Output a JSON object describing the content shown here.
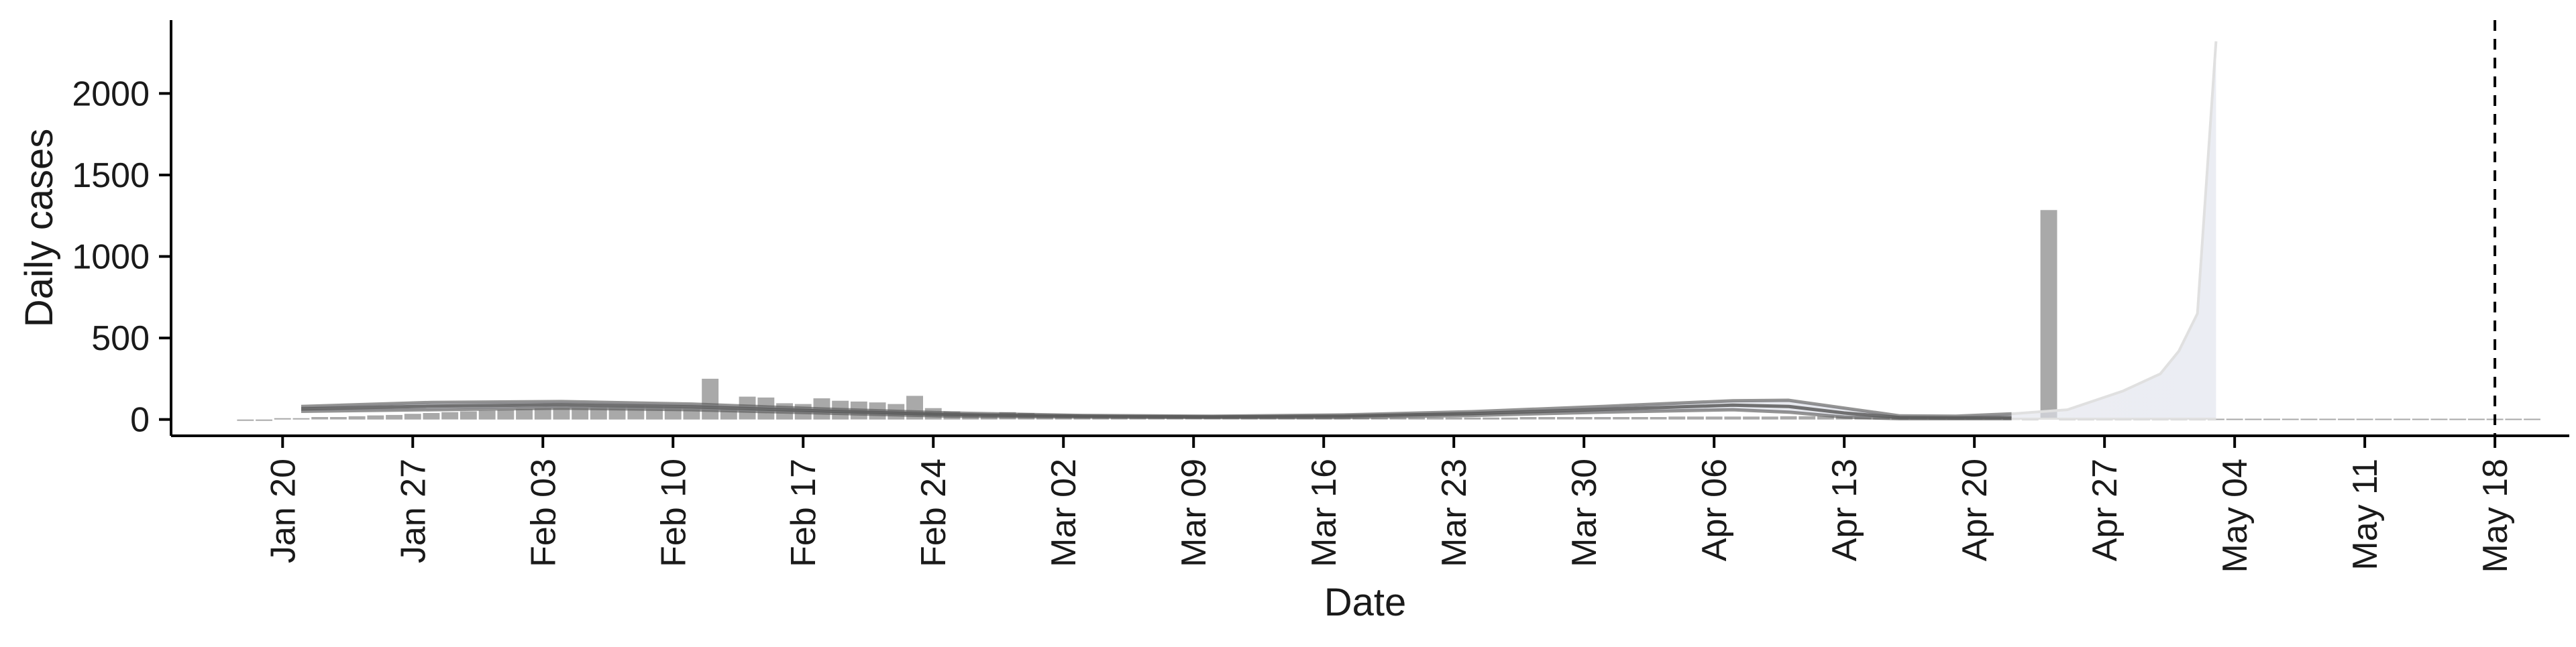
{
  "chart_data": {
    "type": "bar",
    "title": "",
    "xlabel": "Date",
    "ylabel": "Daily cases",
    "x_start": "2020-01-18",
    "xlim": [
      "2020-01-14",
      "2020-05-22"
    ],
    "ylim": [
      -100,
      2450
    ],
    "grid": false,
    "legend": "none",
    "colors": {
      "bar": "#a9a9a9",
      "line": "#5a5a5a",
      "band": "#dfe1ea",
      "forecast_band": "#e9ebf2",
      "forecast_line": "#e0e0e0",
      "vline": "#000000"
    },
    "x_ticks": [
      {
        "date": "2020-01-20",
        "label": "Jan 20"
      },
      {
        "date": "2020-01-27",
        "label": "Jan 27"
      },
      {
        "date": "2020-02-03",
        "label": "Feb 03"
      },
      {
        "date": "2020-02-10",
        "label": "Feb 10"
      },
      {
        "date": "2020-02-17",
        "label": "Feb 17"
      },
      {
        "date": "2020-02-24",
        "label": "Feb 24"
      },
      {
        "date": "2020-03-02",
        "label": "Mar 02"
      },
      {
        "date": "2020-03-09",
        "label": "Mar 09"
      },
      {
        "date": "2020-03-16",
        "label": "Mar 16"
      },
      {
        "date": "2020-03-23",
        "label": "Mar 23"
      },
      {
        "date": "2020-03-30",
        "label": "Mar 30"
      },
      {
        "date": "2020-04-06",
        "label": "Apr 06"
      },
      {
        "date": "2020-04-13",
        "label": "Apr 13"
      },
      {
        "date": "2020-04-20",
        "label": "Apr 20"
      },
      {
        "date": "2020-04-27",
        "label": "Apr 27"
      },
      {
        "date": "2020-05-04",
        "label": "May 04"
      },
      {
        "date": "2020-05-11",
        "label": "May 11"
      },
      {
        "date": "2020-05-18",
        "label": "May 18"
      }
    ],
    "y_ticks": [
      0,
      500,
      1000,
      1500,
      2000
    ],
    "vline_date": "2020-05-18",
    "bars": [
      0,
      0,
      8,
      8,
      15,
      15,
      20,
      25,
      28,
      35,
      40,
      45,
      50,
      55,
      60,
      65,
      70,
      72,
      75,
      78,
      80,
      82,
      80,
      78,
      75,
      250,
      70,
      140,
      135,
      100,
      95,
      130,
      115,
      110,
      105,
      95,
      145,
      70,
      50,
      35,
      35,
      45,
      40,
      30,
      30,
      25,
      20,
      20,
      20,
      18,
      18,
      15,
      15,
      15,
      12,
      12,
      12,
      12,
      10,
      10,
      10,
      10,
      12,
      12,
      12,
      12,
      12,
      12,
      12,
      15,
      15,
      15,
      15,
      15,
      15,
      15,
      15,
      18,
      18,
      18,
      18,
      18,
      18,
      20,
      20,
      20,
      20,
      20,
      20,
      18,
      15,
      12,
      10,
      10,
      8,
      6,
      5,
      1285,
      5,
      5,
      5,
      5,
      5,
      5,
      5,
      5,
      5,
      5,
      5,
      5,
      5,
      5,
      5,
      5,
      5,
      5,
      5,
      5,
      5,
      5,
      5,
      5,
      5,
      5
    ],
    "series": [
      {
        "x": [
          "2020-01-21",
          "2020-01-28",
          "2020-02-04",
          "2020-02-11",
          "2020-02-18",
          "2020-02-25",
          "2020-03-03",
          "2020-03-10",
          "2020-03-17",
          "2020-03-24",
          "2020-03-31",
          "2020-04-07",
          "2020-04-10",
          "2020-04-13",
          "2020-04-16",
          "2020-04-19",
          "2020-04-22",
          "2020-04-25",
          "2020-04-28",
          "2020-04-30",
          "2020-05-01",
          "2020-05-02",
          "2020-05-03"
        ],
        "upper": [
          80,
          105,
          110,
          95,
          65,
          40,
          25,
          20,
          28,
          48,
          80,
          115,
          118,
          70,
          22,
          20,
          35,
          60,
          175,
          280,
          420,
          650,
          2320
        ],
        "lower": [
          50,
          60,
          70,
          60,
          40,
          20,
          15,
          12,
          12,
          25,
          45,
          60,
          45,
          15,
          5,
          5,
          5,
          5,
          5,
          5,
          5,
          5,
          5
        ],
        "median": [
          65,
          82,
          90,
          78,
          52,
          30,
          20,
          16,
          20,
          36,
          62,
          88,
          80,
          40,
          12,
          10,
          12,
          15,
          20,
          25,
          30,
          35,
          40
        ]
      }
    ]
  }
}
